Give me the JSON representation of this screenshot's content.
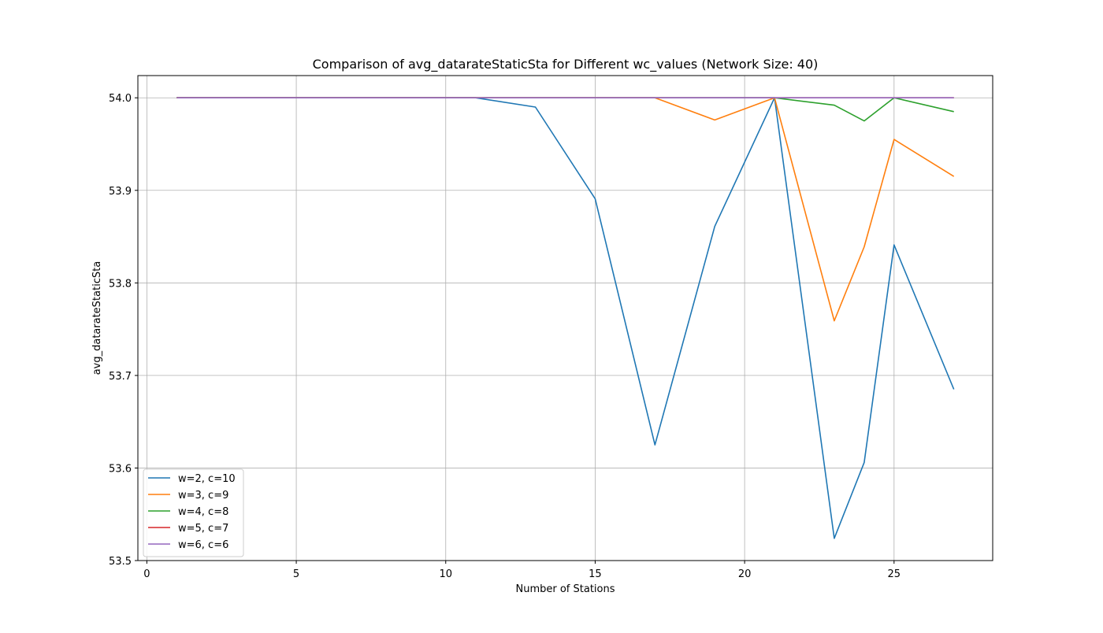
{
  "chart_data": {
    "type": "line",
    "title": "Comparison of avg_datarateStaticSta for Different wc_values (Network Size: 40)",
    "xlabel": "Number of Stations",
    "ylabel": "avg_datarateStaticSta",
    "xlim": [
      -0.3,
      28.3
    ],
    "ylim": [
      53.5,
      54.024
    ],
    "xticks": [
      0,
      5,
      10,
      15,
      20,
      25
    ],
    "yticks": [
      53.5,
      53.6,
      53.7,
      53.8,
      53.9,
      54.0
    ],
    "xtick_labels": [
      "0",
      "5",
      "10",
      "15",
      "20",
      "25"
    ],
    "ytick_labels": [
      "53.5",
      "53.6",
      "53.7",
      "53.8",
      "53.9",
      "54.0"
    ],
    "grid": true,
    "legend_position": "lower-left",
    "x": [
      1,
      3,
      5,
      7,
      9,
      11,
      13,
      15,
      17,
      19,
      21,
      23,
      24,
      25,
      27
    ],
    "series": [
      {
        "name": "w=2, c=10",
        "color": "#1f77b4",
        "values": [
          54.0,
          54.0,
          54.0,
          54.0,
          54.0,
          54.0,
          53.99,
          53.891,
          53.625,
          53.861,
          54.0,
          53.524,
          53.606,
          53.841,
          53.685
        ]
      },
      {
        "name": "w=3, c=9",
        "color": "#ff7f0e",
        "values": [
          54.0,
          54.0,
          54.0,
          54.0,
          54.0,
          54.0,
          54.0,
          54.0,
          54.0,
          53.976,
          54.0,
          53.759,
          53.839,
          53.955,
          53.915
        ]
      },
      {
        "name": "w=4, c=8",
        "color": "#2ca02c",
        "values": [
          54.0,
          54.0,
          54.0,
          54.0,
          54.0,
          54.0,
          54.0,
          54.0,
          54.0,
          54.0,
          54.0,
          53.992,
          53.975,
          54.0,
          53.985
        ]
      },
      {
        "name": "w=5, c=7",
        "color": "#d62728",
        "values": [
          54.0,
          54.0,
          54.0,
          54.0,
          54.0,
          54.0,
          54.0,
          54.0,
          54.0,
          54.0,
          54.0,
          54.0,
          54.0,
          54.0,
          54.0
        ]
      },
      {
        "name": "w=6, c=6",
        "color": "#9467bd",
        "values": [
          54.0,
          54.0,
          54.0,
          54.0,
          54.0,
          54.0,
          54.0,
          54.0,
          54.0,
          54.0,
          54.0,
          54.0,
          54.0,
          54.0,
          54.0
        ]
      }
    ]
  }
}
